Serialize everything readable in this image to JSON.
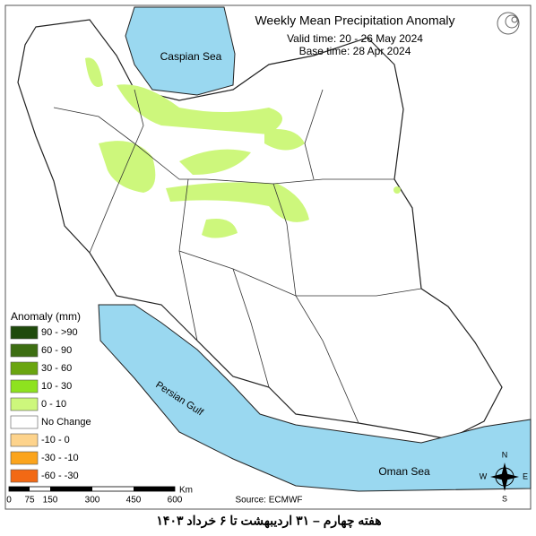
{
  "header": {
    "title": "Weekly Mean Precipitation Anomaly",
    "valid_time": "Valid time: 20 - 26 May 2024",
    "base_time": "Base time: 28 Apr 2024"
  },
  "labels": {
    "caspian": "Caspian Sea",
    "gulf": "Persian Gulf",
    "oman": "Oman Sea"
  },
  "legend": {
    "title": "Anomaly (mm)",
    "items": [
      {
        "label": "90 - >90",
        "color": "#1f4a0c"
      },
      {
        "label": "60 - 90",
        "color": "#3d6e12"
      },
      {
        "label": "30 - 60",
        "color": "#6aa510"
      },
      {
        "label": "10 - 30",
        "color": "#8ee21f"
      },
      {
        "label": "0 - 10",
        "color": "#cdf77c"
      },
      {
        "label": "No Change",
        "color": "#ffffff"
      },
      {
        "label": "-10 - 0",
        "color": "#fdd38c"
      },
      {
        "label": "-30 - -10",
        "color": "#fba41c"
      },
      {
        "label": "-60 - -30",
        "color": "#f26914"
      }
    ]
  },
  "scale": {
    "ticks": [
      "0",
      "75",
      "150",
      "300",
      "450",
      "600"
    ],
    "unit": "Km"
  },
  "compass": {
    "n": "N",
    "s": "S",
    "e": "E",
    "w": "W"
  },
  "source": "Source: ECMWF",
  "footer": "هفته چهارم – ۳۱ اردیبهشت تا ۶ خرداد ۱۴۰۳"
}
